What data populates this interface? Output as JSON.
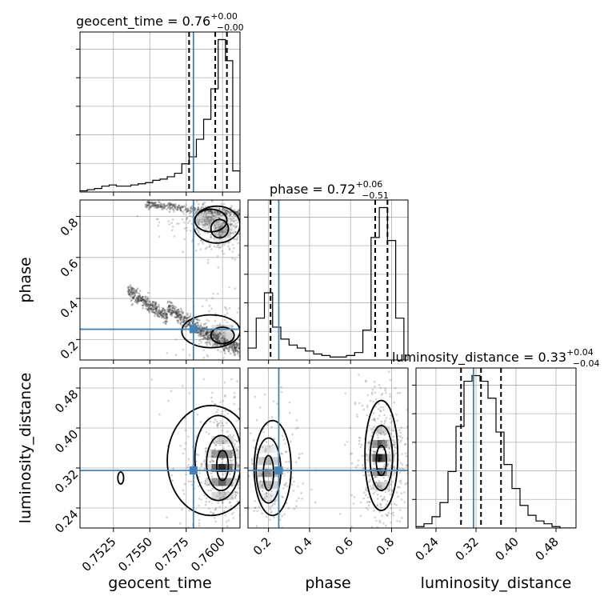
{
  "chart_data": {
    "type": "corner",
    "parameters": [
      "geocent_time",
      "phase",
      "luminosity_distance"
    ],
    "axis_labels": {
      "geocent_time": "geocent_time",
      "phase": "phase",
      "luminosity_distance": "luminosity_distance"
    },
    "ranges": {
      "geocent_time": [
        0.7502,
        0.7612
      ],
      "phase": [
        0.1,
        0.88
      ],
      "luminosity_distance": [
        0.2,
        0.52
      ]
    },
    "ticks": {
      "geocent_time": [
        "0.7525",
        "0.7550",
        "0.7575",
        "0.7600"
      ],
      "phase": [
        "0.2",
        "0.4",
        "0.6",
        "0.8"
      ],
      "luminosity_distance": [
        "0.24",
        "0.32",
        "0.40",
        "0.48"
      ]
    },
    "injected_values": {
      "geocent_time": 0.758,
      "phase": 0.25,
      "luminosity_distance": 0.315
    },
    "summaries": [
      {
        "param": "geocent_time",
        "label": "geocent_time",
        "median": "0.76",
        "plus": "+0.00",
        "minus": "−0.00",
        "quantiles": [
          0.7577,
          0.7595,
          0.7603
        ]
      },
      {
        "param": "phase",
        "label": "phase",
        "median": "0.72",
        "plus": "+0.06",
        "minus": "−0.51",
        "quantiles": [
          0.21,
          0.72,
          0.78
        ]
      },
      {
        "param": "luminosity_distance",
        "label": "luminosity_distance",
        "median": "0.33",
        "plus": "+0.04",
        "minus": "−0.04",
        "quantiles": [
          0.29,
          0.33,
          0.37
        ]
      }
    ],
    "histograms": {
      "geocent_time": {
        "edges": [
          0.7502,
          0.7507,
          0.7512,
          0.7517,
          0.7522,
          0.7527,
          0.7532,
          0.7537,
          0.7542,
          0.7547,
          0.7552,
          0.7557,
          0.7562,
          0.7567,
          0.7572,
          0.7577,
          0.7582,
          0.7587,
          0.7592,
          0.7597,
          0.7602,
          0.7607,
          0.7612
        ],
        "counts": [
          1,
          2,
          3,
          5,
          6,
          5,
          5,
          6,
          7,
          8,
          10,
          11,
          13,
          16,
          24,
          30,
          45,
          62,
          88,
          130,
          112,
          18
        ]
      },
      "phase": {
        "edges": [
          0.1,
          0.14,
          0.18,
          0.22,
          0.26,
          0.3,
          0.34,
          0.38,
          0.42,
          0.46,
          0.5,
          0.54,
          0.58,
          0.62,
          0.66,
          0.7,
          0.74,
          0.78,
          0.82,
          0.86
        ],
        "counts": [
          8,
          28,
          45,
          22,
          14,
          10,
          8,
          6,
          4,
          3,
          2,
          2,
          3,
          5,
          20,
          82,
          102,
          80,
          28
        ]
      },
      "luminosity_distance": {
        "edges": [
          0.2,
          0.216,
          0.232,
          0.248,
          0.264,
          0.28,
          0.296,
          0.312,
          0.328,
          0.344,
          0.36,
          0.376,
          0.392,
          0.408,
          0.424,
          0.44,
          0.456,
          0.472,
          0.488,
          0.504,
          0.52
        ],
        "counts": [
          1,
          3,
          8,
          18,
          40,
          72,
          104,
          108,
          104,
          92,
          68,
          45,
          28,
          16,
          9,
          5,
          3,
          1,
          0,
          0
        ]
      }
    },
    "joint_2d": [
      {
        "x": "geocent_time",
        "y": "phase",
        "modes": [
          {
            "x": 0.76,
            "y": 0.74,
            "sx": 0.0004,
            "sy": 0.03,
            "w": 0.5
          },
          {
            "x": 0.759,
            "y": 0.79,
            "sx": 0.0007,
            "sy": 0.02,
            "w": 0.4
          },
          {
            "x": 0.76,
            "y": 0.22,
            "sx": 0.0006,
            "sy": 0.04,
            "w": 0.3
          }
        ],
        "contour_levels": [
          {
            "cx": 0.7598,
            "cy": 0.74,
            "rx": 0.0006,
            "ry": 0.045
          },
          {
            "cx": 0.7592,
            "cy": 0.78,
            "rx": 0.0011,
            "ry": 0.055
          },
          {
            "cx": 0.7596,
            "cy": 0.76,
            "rx": 0.0016,
            "ry": 0.09
          },
          {
            "cx": 0.76,
            "cy": 0.22,
            "rx": 0.0008,
            "ry": 0.04
          },
          {
            "cx": 0.7592,
            "cy": 0.24,
            "rx": 0.002,
            "ry": 0.08
          }
        ]
      },
      {
        "x": "geocent_time",
        "y": "luminosity_distance",
        "modes": [
          {
            "x": 0.76,
            "y": 0.32,
            "sx": 0.0006,
            "sy": 0.035,
            "w": 1.0
          }
        ],
        "contour_levels": [
          {
            "cx": 0.76,
            "cy": 0.325,
            "rx": 0.0004,
            "ry": 0.03
          },
          {
            "cx": 0.7599,
            "cy": 0.33,
            "rx": 0.001,
            "ry": 0.055
          },
          {
            "cx": 0.7597,
            "cy": 0.34,
            "rx": 0.0016,
            "ry": 0.085
          },
          {
            "cx": 0.7592,
            "cy": 0.335,
            "rx": 0.003,
            "ry": 0.11
          },
          {
            "cx": 0.753,
            "cy": 0.3,
            "rx": 0.0002,
            "ry": 0.012
          }
        ]
      },
      {
        "x": "phase",
        "y": "luminosity_distance",
        "modes": [
          {
            "x": 0.75,
            "y": 0.34,
            "sx": 0.03,
            "sy": 0.035,
            "w": 1.0
          },
          {
            "x": 0.2,
            "y": 0.31,
            "sx": 0.04,
            "sy": 0.03,
            "w": 0.5
          }
        ],
        "contour_levels": [
          {
            "cx": 0.75,
            "cy": 0.335,
            "rx": 0.025,
            "ry": 0.03
          },
          {
            "cx": 0.75,
            "cy": 0.34,
            "rx": 0.055,
            "ry": 0.065
          },
          {
            "cx": 0.75,
            "cy": 0.345,
            "rx": 0.08,
            "ry": 0.11
          },
          {
            "cx": 0.2,
            "cy": 0.31,
            "rx": 0.025,
            "ry": 0.035
          },
          {
            "cx": 0.2,
            "cy": 0.315,
            "rx": 0.06,
            "ry": 0.065
          },
          {
            "cx": 0.22,
            "cy": 0.32,
            "rx": 0.09,
            "ry": 0.095
          }
        ]
      }
    ]
  }
}
